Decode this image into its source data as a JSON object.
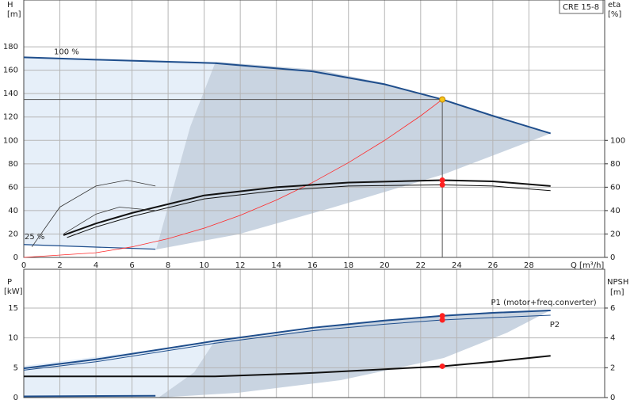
{
  "chart_data": [
    {
      "type": "line",
      "title": "CRE 15-8",
      "ylabel": "H",
      "yunit": "[m]",
      "y2label": "eta",
      "y2unit": "[%]",
      "xlabel": "Q [m³/h]",
      "xlim": [
        0,
        32.2
      ],
      "xticks": [
        0,
        2,
        4,
        6,
        8,
        10,
        12,
        14,
        16,
        18,
        20,
        22,
        24,
        26,
        28
      ],
      "ylim": [
        0,
        220
      ],
      "yticks": [
        0,
        20,
        40,
        60,
        80,
        100,
        120,
        140,
        160,
        180
      ],
      "y2lim": [
        0,
        220
      ],
      "y2ticks": [
        0,
        20,
        40,
        60,
        80,
        100
      ],
      "grid": true,
      "series": [
        {
          "name": "100 %",
          "color": "#1f4e8c",
          "x": [
            0,
            4,
            10.6,
            16,
            20,
            23.2,
            26,
            29.2
          ],
          "values": [
            171,
            169,
            166,
            159,
            148,
            135,
            121,
            106
          ]
        },
        {
          "name": "25 %",
          "color": "#1f4e8c",
          "x": [
            0,
            7.3
          ],
          "values": [
            11,
            7
          ]
        },
        {
          "color": "#ff2a2a",
          "x": [
            0,
            4,
            6,
            8,
            10,
            12,
            14,
            16,
            18,
            20,
            22,
            23.2
          ],
          "values": [
            0,
            4,
            9,
            16,
            25,
            36,
            49,
            64,
            81,
            100,
            121,
            135
          ]
        },
        {
          "color": "#111111",
          "axis": "y2",
          "x": [
            2.2,
            4,
            6,
            10,
            14,
            18,
            23.2,
            26,
            29.2
          ],
          "values": [
            19,
            29,
            38,
            53,
            60,
            64,
            66,
            65,
            61
          ]
        },
        {
          "color": "#111111",
          "axis": "y2",
          "x": [
            2.4,
            4,
            6,
            10,
            14,
            18,
            23.2,
            26,
            29.2
          ],
          "values": [
            17,
            26,
            35,
            50,
            57,
            61,
            62,
            61,
            57
          ]
        },
        {
          "color": "#333333",
          "axis": "y2",
          "x": [
            0.45,
            2,
            4,
            5.7,
            7.3
          ],
          "values": [
            9,
            43,
            61,
            66,
            61
          ]
        },
        {
          "color": "#333333",
          "axis": "y2",
          "x": [
            2.2,
            4,
            5.3,
            7.3
          ],
          "values": [
            20,
            37,
            43,
            40
          ]
        }
      ],
      "markers": [
        {
          "x": 23.2,
          "y": 135,
          "color": "#f5c518"
        },
        {
          "x": 23.2,
          "y": 66,
          "axis": "y2",
          "color": "#ff2020"
        },
        {
          "x": 23.2,
          "y": 62,
          "axis": "y2",
          "color": "#ff2020"
        }
      ]
    },
    {
      "type": "line",
      "ylabel": "P",
      "yunit": "[kW]",
      "y2label": "NPSH",
      "y2unit": "[m]",
      "xlim": [
        0,
        32.2
      ],
      "xticks": [
        0,
        2,
        4,
        6,
        8,
        10,
        12,
        14,
        16,
        18,
        20,
        22,
        24,
        26,
        28
      ],
      "ylim": [
        0,
        21.5
      ],
      "yticks": [
        0,
        5,
        10,
        15
      ],
      "y2lim": [
        0,
        8.6
      ],
      "y2ticks": [
        0,
        2,
        4,
        6
      ],
      "grid": true,
      "series": [
        {
          "name": "P1 (motor+freq.converter)",
          "color": "#1f4e8c",
          "x": [
            0,
            4,
            10.6,
            16,
            20,
            23.2,
            26,
            29.2
          ],
          "values": [
            4.9,
            6.4,
            9.5,
            11.7,
            12.9,
            13.7,
            14.2,
            14.6
          ]
        },
        {
          "name": "P2",
          "color": "#1f4e8c",
          "x": [
            0,
            4,
            10.6,
            16,
            20,
            23.2,
            26,
            29.2
          ],
          "values": [
            4.6,
            6.0,
            9.1,
            11.2,
            12.3,
            13.0,
            13.4,
            13.8
          ]
        },
        {
          "color": "#111111",
          "axis": "y2",
          "x": [
            0,
            10.6,
            16,
            20,
            23.2,
            26,
            29.2
          ],
          "values": [
            1.42,
            1.42,
            1.65,
            1.9,
            2.1,
            2.4,
            2.8
          ]
        },
        {
          "color": "#1f4e8c",
          "x": [
            0,
            7.3
          ],
          "values": [
            0.2,
            0.3
          ]
        }
      ],
      "markers": [
        {
          "x": 23.2,
          "y": 13.7,
          "color": "#ff2020"
        },
        {
          "x": 23.2,
          "y": 13.0,
          "color": "#ff2020"
        },
        {
          "x": 23.2,
          "y": 2.1,
          "axis": "y2",
          "color": "#ff2020"
        }
      ]
    }
  ]
}
